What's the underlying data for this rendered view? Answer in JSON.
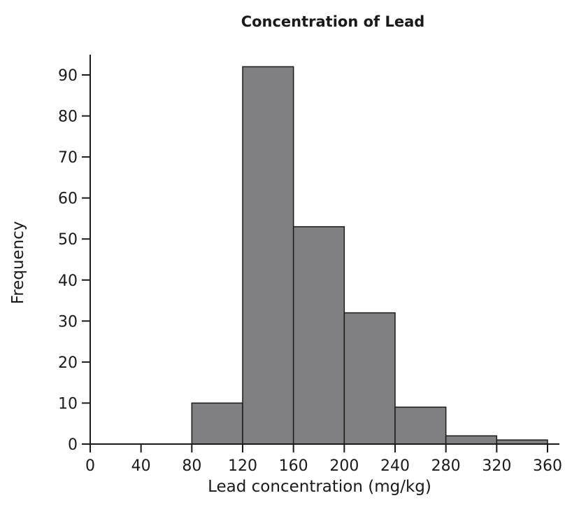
{
  "chart_data": {
    "type": "bar",
    "title": "Concentration of Lead",
    "xlabel": "Lead concentration (mg/kg)",
    "ylabel": "Frequency",
    "bins": [
      {
        "from": 0,
        "to": 40,
        "value": 0
      },
      {
        "from": 40,
        "to": 80,
        "value": 0
      },
      {
        "from": 80,
        "to": 120,
        "value": 10
      },
      {
        "from": 120,
        "to": 160,
        "value": 92
      },
      {
        "from": 160,
        "to": 200,
        "value": 53
      },
      {
        "from": 200,
        "to": 240,
        "value": 32
      },
      {
        "from": 240,
        "to": 280,
        "value": 9
      },
      {
        "from": 280,
        "to": 320,
        "value": 2
      },
      {
        "from": 320,
        "to": 360,
        "value": 1
      }
    ],
    "xticks": [
      "0",
      "40",
      "80",
      "120",
      "160",
      "200",
      "240",
      "280",
      "320",
      "360"
    ],
    "yticks": [
      "0",
      "10",
      "20",
      "30",
      "40",
      "50",
      "60",
      "70",
      "80",
      "90"
    ],
    "xlim": [
      0,
      360
    ],
    "ylim": [
      0,
      96
    ],
    "grid": false,
    "bar_color": "#808082",
    "edge_color": "#1a1a1a"
  }
}
